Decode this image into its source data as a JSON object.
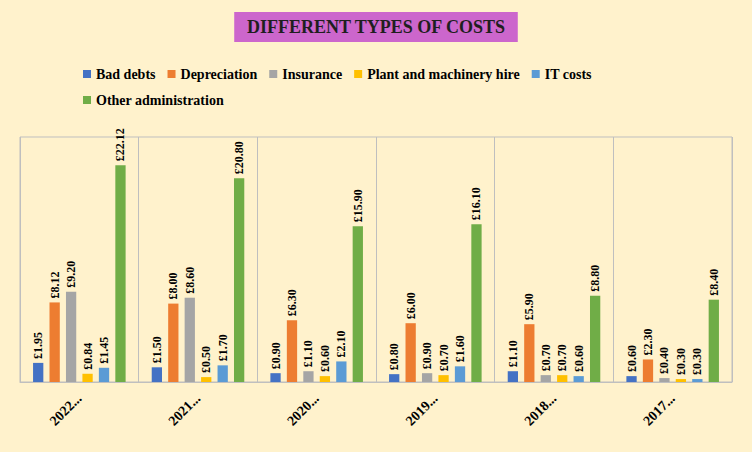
{
  "chart_data": {
    "type": "bar",
    "title": "DIFFERENT TYPES OF COSTS",
    "categories": [
      "2022...",
      "2021...",
      "2020...",
      "2019...",
      "2018...",
      "2017..."
    ],
    "series": [
      {
        "name": "Bad debts",
        "color": "#4472C4",
        "values": [
          1.95,
          1.5,
          0.9,
          0.8,
          1.1,
          0.6
        ],
        "value_labels": [
          "£1.95",
          "£1.50",
          "£0.90",
          "£0.80",
          "£1.10",
          "£0.60"
        ]
      },
      {
        "name": "Depreciation",
        "color": "#ED7D31",
        "values": [
          8.12,
          8.0,
          6.3,
          6.0,
          5.9,
          2.3
        ],
        "value_labels": [
          "£8.12",
          "£8.00",
          "£6.30",
          "£6.00",
          "£5.90",
          "£2.30"
        ]
      },
      {
        "name": "Insurance",
        "color": "#A5A5A5",
        "values": [
          9.2,
          8.6,
          1.1,
          0.9,
          0.7,
          0.4
        ],
        "value_labels": [
          "£9.20",
          "£8.60",
          "£1.10",
          "£0.90",
          "£0.70",
          "£0.40"
        ]
      },
      {
        "name": "Plant and machinery hire",
        "color": "#FFC000",
        "values": [
          0.84,
          0.5,
          0.6,
          0.7,
          0.7,
          0.3
        ],
        "value_labels": [
          "£0.84",
          "£0.50",
          "£0.60",
          "£0.70",
          "£0.70",
          "£0.30"
        ]
      },
      {
        "name": "IT costs",
        "color": "#5B9BD5",
        "values": [
          1.45,
          1.7,
          2.1,
          1.6,
          0.6,
          0.3
        ],
        "value_labels": [
          "£1.45",
          "£1.70",
          "£2.10",
          "£1.60",
          "£0.60",
          "£0.30"
        ]
      },
      {
        "name": "Other administration",
        "color": "#70AD47",
        "values": [
          22.12,
          20.8,
          15.9,
          16.1,
          8.8,
          8.4
        ],
        "value_labels": [
          "£22.12",
          "£20.80",
          "£15.90",
          "£16.10",
          "£8.80",
          "£8.40"
        ]
      }
    ],
    "ylim": [
      0,
      25
    ],
    "data_labels": true,
    "tick_labels": "x",
    "legend": "top"
  }
}
